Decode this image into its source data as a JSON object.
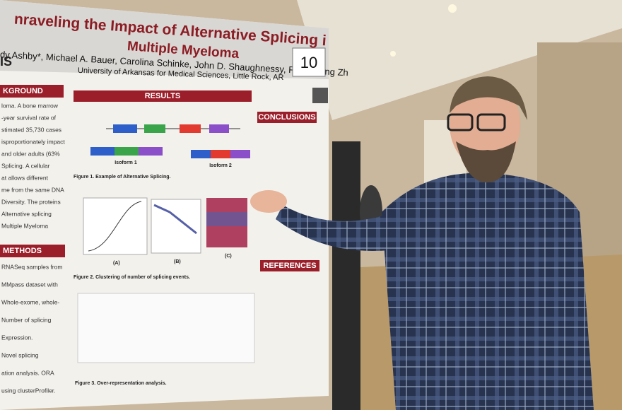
{
  "poster": {
    "title_lines": [
      "nraveling the Impact of Alternative Splicing i",
      "Multiple Myeloma"
    ],
    "authors": "dy Ashby*, Michael A. Bauer, Carolina Schinke, John D. Shaughnessy, Fenghuang Zh",
    "affiliation": "University of Arkansas for Medical Sciences, Little Rock, AR",
    "logo": "IS",
    "board_number": "10",
    "left_headers": [
      "KGROUND",
      "METHODS"
    ],
    "background_lines": [
      "loma. A bone marrow",
      "-year survival rate of",
      "stimated 35,730 cases",
      "isproportionately impact",
      "and older adults (63%",
      "Splicing. A cellular",
      "at allows different",
      "me from the same DNA",
      "Diversity. The proteins",
      "Alternative splicing",
      "Multiple Myeloma"
    ],
    "methods_lines": [
      "RNASeq samples from",
      "MMpass dataset with",
      "Whole-exome, whole-",
      "Number of splicing",
      "Expression.",
      "Novel splicing",
      "ation analysis. ORA",
      "using clusterProfiler."
    ],
    "results_header": "RESULTS",
    "isoforms": [
      "Isoform 1",
      "Isoform 2"
    ],
    "figure_captions": [
      "Figure 1. Example of Alternative Splicing.",
      "Figure 2. Clustering of number of splicing events.",
      "Figure 3. Over-representation analysis."
    ],
    "panel_labels": [
      "(A)",
      "(B)",
      "(C)"
    ],
    "right_headers": [
      "CONCLUSIONS",
      "REFERENCES"
    ]
  }
}
